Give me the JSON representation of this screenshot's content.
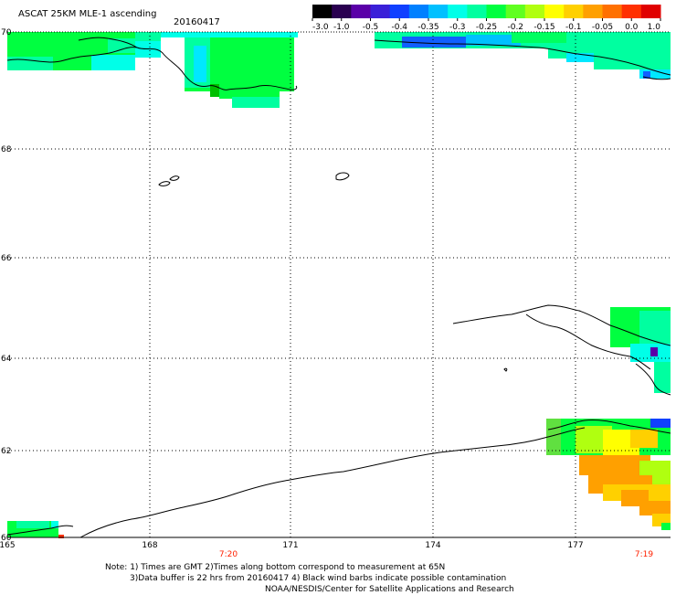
{
  "title": "ASCAT 25KM MLE-1 ascending",
  "date": "20160417",
  "colorbar": {
    "labels": [
      "-3.0",
      "-1.0",
      "-0.5",
      "-0.4",
      "-0.35",
      "-0.3",
      "-0.25",
      "-0.2",
      "-0.15",
      "-0.1",
      "-0.05",
      "0.0",
      "1.0"
    ],
    "colors": [
      "#000000",
      "#2a0050",
      "#5a00a8",
      "#3a20d8",
      "#1040ff",
      "#0080ff",
      "#00c0ff",
      "#00ffe8",
      "#00ffa0",
      "#00ff40",
      "#60ff20",
      "#b0ff10",
      "#ffff00",
      "#ffd000",
      "#ffa000",
      "#ff7000",
      "#ff3000",
      "#e00000"
    ]
  },
  "map": {
    "lat_labels": [
      "70",
      "68",
      "66",
      "64",
      "62",
      "60"
    ],
    "lon_labels": [
      "165",
      "168",
      "171",
      "174",
      "177"
    ],
    "time_labels": [
      "7:20",
      "7:19"
    ],
    "time_color": "#ff2000",
    "land_color": "#000000",
    "grid_color": "#000000"
  },
  "notes": [
    "Note: 1) Times are GMT 2)Times along bottom correspond to measurement at 65N",
    "3)Data buffer is 22 hrs from 20160417 4) Black wind barbs indicate possible contamination",
    "NOAA/NESDIS/Center for Satellite Applications and Research"
  ]
}
